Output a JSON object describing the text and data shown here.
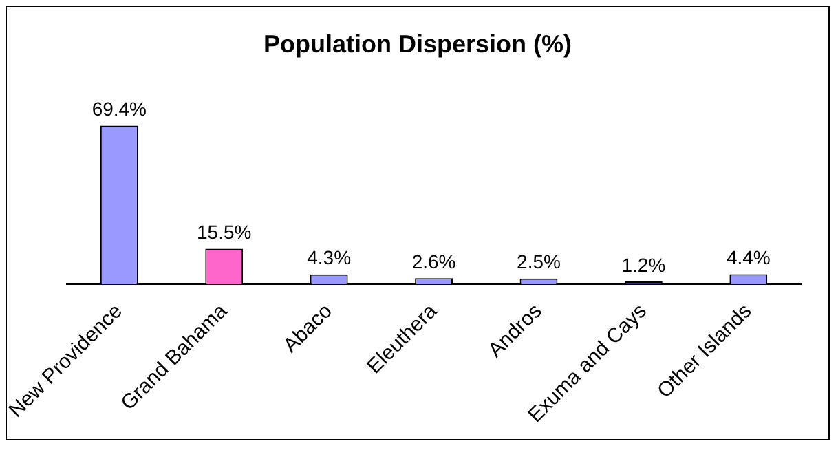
{
  "chart_data": {
    "type": "bar",
    "title": "Population Dispersion (%)",
    "categories": [
      "New Providence",
      "Grand Bahama",
      "Abaco",
      "Eleuthera",
      "Andros",
      "Exuma and Cays",
      "Other Islands"
    ],
    "values": [
      69.4,
      15.5,
      4.3,
      2.6,
      2.5,
      1.2,
      4.4
    ],
    "value_labels": [
      "69.4%",
      "15.5%",
      "4.3%",
      "2.6%",
      "2.5%",
      "1.2%",
      "4.4%"
    ],
    "colors": [
      "#9999ff",
      "#ff66cc",
      "#9999ff",
      "#9999ff",
      "#9999ff",
      "#333366",
      "#9999ff"
    ],
    "legend": false,
    "grid": false
  }
}
